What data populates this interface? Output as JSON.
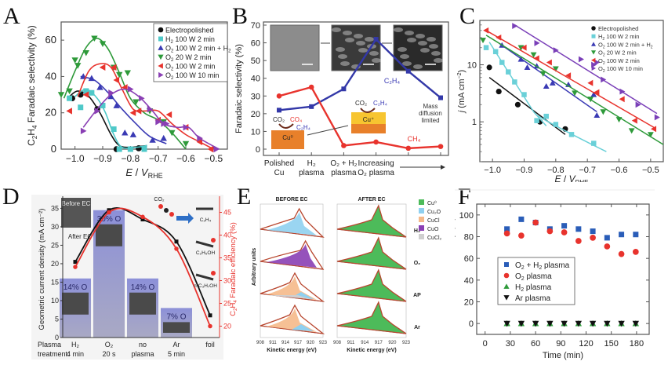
{
  "panel_labels": {
    "A": "A",
    "B": "B",
    "C": "C",
    "D": "D",
    "E": "E",
    "F": "F"
  },
  "chart_data": [
    {
      "id": "A",
      "type": "scatter",
      "title": "",
      "xlabel": "E / V_RHE",
      "ylabel": "C2H4 Faradaic selectivity (%)",
      "xlim": [
        -1.05,
        -0.45
      ],
      "ylim": [
        0,
        70
      ],
      "xticks": [
        -1.0,
        -0.9,
        -0.8,
        -0.7,
        -0.6,
        -0.5
      ],
      "xtick_labels": [
        "−1.0",
        "−0.9",
        "−0.8",
        "−0.7",
        "−0.6",
        "−0.5"
      ],
      "yticks": [
        0,
        20,
        40,
        60
      ],
      "legend_position": "top-right",
      "series": [
        {
          "name": "Electropolished",
          "color": "#111111",
          "marker": "circle",
          "x": [
            -1.01,
            -0.98,
            -0.92,
            -0.85,
            -0.77
          ],
          "y": [
            28,
            30,
            22,
            0,
            0.5
          ],
          "fit": [
            [
              -1.02,
              29
            ],
            [
              -0.99,
              32
            ],
            [
              -0.95,
              29
            ],
            [
              -0.91,
              20
            ],
            [
              -0.87,
              8
            ],
            [
              -0.84,
              2
            ],
            [
              -0.8,
              1
            ],
            [
              -0.74,
              2
            ]
          ]
        },
        {
          "name": "H2 100 W 2 min",
          "color": "#4fc9c9",
          "marker": "square",
          "x": [
            -1.02,
            -0.98,
            -0.96,
            -0.94,
            -0.9,
            -0.86,
            -0.84,
            -0.8,
            -0.75
          ],
          "y": [
            28,
            23,
            32,
            31,
            24,
            11,
            0,
            0,
            0
          ],
          "fit": [
            [
              -1.0,
              29
            ],
            [
              -0.96,
              33
            ],
            [
              -0.92,
              28
            ],
            [
              -0.89,
              20
            ],
            [
              -0.86,
              8
            ],
            [
              -0.83,
              1
            ],
            [
              -0.78,
              1
            ],
            [
              -0.74,
              2
            ]
          ]
        },
        {
          "name": "O2 100 W 2 min + H2",
          "color": "#3a3ab4",
          "marker": "triangle-up",
          "x": [
            -0.97,
            -0.94,
            -0.91,
            -0.87,
            -0.85,
            -0.82,
            -0.79,
            -0.72,
            -0.68
          ],
          "y": [
            40,
            39,
            34,
            29,
            24,
            9,
            8,
            5,
            6
          ],
          "fit": [
            [
              -0.98,
              40
            ],
            [
              -0.93,
              38
            ],
            [
              -0.88,
              31
            ],
            [
              -0.83,
              22
            ],
            [
              -0.78,
              14
            ],
            [
              -0.73,
              7
            ],
            [
              -0.67,
              3
            ]
          ]
        },
        {
          "name": "O2 20 W 2 min",
          "color": "#2e9a3a",
          "marker": "triangle-down",
          "x": [
            -1.05,
            -1.02,
            -1.0,
            -0.99,
            -0.96,
            -0.93,
            -0.9,
            -0.86,
            -0.84,
            -0.81,
            -0.78,
            -0.73,
            -0.68,
            -0.65,
            -0.6
          ],
          "y": [
            30,
            32,
            49,
            46,
            53,
            61,
            58,
            45,
            41,
            42,
            26,
            21,
            15,
            9,
            3
          ],
          "fit": [
            [
              -1.04,
              28
            ],
            [
              -1.0,
              43
            ],
            [
              -0.96,
              56
            ],
            [
              -0.92,
              61
            ],
            [
              -0.88,
              55
            ],
            [
              -0.84,
              42
            ],
            [
              -0.8,
              28
            ],
            [
              -0.75,
              20
            ],
            [
              -0.7,
              16
            ],
            [
              -0.65,
              9
            ],
            [
              -0.6,
              0
            ]
          ]
        },
        {
          "name": "O2 100 W 2 min",
          "color": "#e8332d",
          "marker": "triangle-left",
          "x": [
            -1.02,
            -0.96,
            -0.9,
            -0.86,
            -0.85,
            -0.82,
            -0.79,
            -0.77,
            -0.7,
            -0.66,
            -0.6,
            -0.55,
            -0.51
          ],
          "y": [
            21,
            30,
            45,
            45,
            38,
            34,
            20,
            21,
            16,
            19,
            12,
            4,
            0
          ],
          "fit": [
            [
              -0.99,
              29
            ],
            [
              -0.95,
              43
            ],
            [
              -0.91,
              47
            ],
            [
              -0.87,
              45
            ],
            [
              -0.83,
              33
            ],
            [
              -0.79,
              22
            ],
            [
              -0.75,
              21
            ],
            [
              -0.7,
              21
            ],
            [
              -0.65,
              14
            ],
            [
              -0.6,
              8
            ],
            [
              -0.55,
              4
            ],
            [
              -0.5,
              0
            ]
          ]
        },
        {
          "name": "O2 100 W 10 min",
          "color": "#8a3fb4",
          "marker": "triangle-right",
          "x": [
            -0.97,
            -0.92,
            -0.87,
            -0.8,
            -0.76,
            -0.73,
            -0.7,
            -0.68,
            -0.67,
            -0.6,
            -0.55,
            -0.49
          ],
          "y": [
            10,
            21,
            31,
            33,
            28,
            22,
            15,
            14,
            14,
            12,
            6,
            0
          ],
          "fit": [
            [
              -0.97,
              12
            ],
            [
              -0.92,
              22
            ],
            [
              -0.87,
              30
            ],
            [
              -0.82,
              33
            ],
            [
              -0.77,
              29
            ],
            [
              -0.72,
              21
            ],
            [
              -0.68,
              14
            ],
            [
              -0.63,
              12
            ],
            [
              -0.59,
              12
            ],
            [
              -0.55,
              6
            ],
            [
              -0.48,
              0
            ]
          ]
        }
      ]
    },
    {
      "id": "B",
      "type": "line",
      "title": "",
      "xlabel": "",
      "ylabel": "Faradaic selectivity (%)",
      "ylim": [
        0,
        70
      ],
      "yticks": [
        0,
        10,
        20,
        30,
        40,
        50,
        60,
        70
      ],
      "categories": [
        "Polished\nCu",
        "H2\nplasma",
        "O2 + H2\nplasma",
        "Increasing\nO2 plasma",
        "",
        ""
      ],
      "category_labels": [
        {
          "line1": "Polished",
          "line2": "Cu"
        },
        {
          "line1": "H₂",
          "line2": "plasma"
        },
        {
          "line1": "O₂ + H₂",
          "line2": "plasma"
        },
        {
          "line1": "Increasing",
          "line2": "O₂ plasma"
        }
      ],
      "series": [
        {
          "name": "C2H4",
          "label": "C₂H₄",
          "color": "#3338a8",
          "marker": "square",
          "values": [
            22,
            24,
            34,
            62,
            44,
            29
          ]
        },
        {
          "name": "CH4",
          "label": "CH₄",
          "color": "#e8332d",
          "marker": "circle",
          "values": [
            30,
            35,
            2,
            4,
            0.5,
            1.5
          ]
        }
      ],
      "annotations": {
        "mass_diffusion": [
          "Mass",
          "diffusion",
          "limited"
        ],
        "cu0": "Cu⁰",
        "cuplus": "Cu⁺",
        "co2": "CO₂",
        "co4": "CO₄",
        "c2h4": "C₂H₄"
      }
    },
    {
      "id": "C",
      "type": "scatter",
      "yscale": "log",
      "title": "",
      "xlabel": "E / V_RHE",
      "ylabel": "j (mA cm⁻²)",
      "xlim": [
        -1.04,
        -0.46
      ],
      "ylim": [
        0.2,
        60
      ],
      "xticks": [
        -1.0,
        -0.9,
        -0.8,
        -0.7,
        -0.6,
        -0.5
      ],
      "xtick_labels": [
        "−1.0",
        "−0.9",
        "−0.8",
        "−0.7",
        "−0.6",
        "−0.5"
      ],
      "yticks": [
        1,
        10
      ],
      "legend_position": "top-right",
      "series": [
        {
          "name": "Electropolished",
          "color": "#111111",
          "marker": "circle",
          "x": [
            -1.01,
            -0.98,
            -0.92,
            -0.85,
            -0.77
          ],
          "y": [
            9,
            3.4,
            2,
            1,
            0.75
          ],
          "fit": [
            [
              -1.01,
              6
            ],
            [
              -0.77,
              0.6
            ]
          ]
        },
        {
          "name": "H2 100 W 2 min",
          "color": "#6ad0d8",
          "marker": "square",
          "x": [
            -1.02,
            -0.99,
            -0.97,
            -0.95,
            -0.93,
            -0.9,
            -0.86,
            -0.83,
            -0.8,
            -0.75,
            -0.68
          ],
          "y": [
            20,
            17,
            11,
            7.5,
            5,
            3,
            1.05,
            1.25,
            0.9,
            0.6,
            0.42
          ],
          "fit": [
            [
              -1.01,
              25
            ],
            [
              -0.87,
              1.5
            ],
            [
              -0.83,
              0.85
            ]
          ],
          "fit2": [
            [
              -0.86,
              1.3
            ],
            [
              -0.8,
              0.85
            ],
            [
              -0.72,
              0.5
            ],
            [
              -0.64,
              0.3
            ]
          ]
        },
        {
          "name": "O2 100 W 2 min + H2",
          "color": "#3a3ab4",
          "marker": "triangle-up",
          "x": [
            -0.97,
            -0.91,
            -0.89,
            -0.86,
            -0.83,
            -0.81,
            -0.76,
            -0.68,
            -0.67
          ],
          "y": [
            22,
            12.5,
            9,
            9.5,
            4.2,
            4.8,
            4.5,
            3,
            1.3
          ],
          "fit": [
            [
              -0.98,
              24
            ],
            [
              -0.67,
              1.5
            ]
          ]
        },
        {
          "name": "O2 20 W 2 min",
          "color": "#2e9a3a",
          "marker": "triangle-down",
          "x": [
            -1.03,
            -0.91,
            -0.87,
            -0.84,
            -0.8,
            -0.74,
            -0.69,
            -0.65,
            -0.6,
            -0.56,
            -0.5
          ],
          "y": [
            27,
            20,
            15,
            7,
            8.5,
            3.2,
            2.5,
            1.5,
            1.1,
            0.7,
            0.6
          ],
          "fit": [
            [
              -1.02,
              33
            ],
            [
              -0.46,
              0.4
            ]
          ]
        },
        {
          "name": "O2 100 W 2 min",
          "color": "#e8332d",
          "marker": "triangle-left",
          "x": [
            -1.02,
            -0.98,
            -0.9,
            -0.86,
            -0.82,
            -0.76,
            -0.69,
            -0.67,
            -0.59,
            -0.55,
            -0.49
          ],
          "y": [
            40,
            30,
            20,
            13,
            11,
            6.5,
            4.8,
            3.3,
            2.5,
            1.05,
            0.75
          ],
          "fit": [
            [
              -1.02,
              40
            ],
            [
              -0.49,
              0.8
            ]
          ]
        },
        {
          "name": "O2 100 W 10 min",
          "color": "#7a3fb8",
          "marker": "triangle-right",
          "x": [
            -0.93,
            -0.86,
            -0.8,
            -0.72,
            -0.68,
            -0.67,
            -0.65,
            -0.59,
            -0.54,
            -0.48
          ],
          "y": [
            48,
            24,
            18,
            12.5,
            10,
            11,
            5.5,
            3.4,
            2,
            1.2
          ],
          "fit": [
            [
              -0.93,
              50
            ],
            [
              -0.48,
              1.4
            ]
          ]
        }
      ]
    },
    {
      "id": "D",
      "type": "bar",
      "title": "",
      "xlabel": "",
      "ylabel": "Geometric current density (mA cm⁻²)",
      "y2label": "C2H4 Faradaic efficiency (%)",
      "ylim": [
        0,
        37
      ],
      "y2lim": [
        17.5,
        47.5
      ],
      "yticks": [
        0,
        5,
        10,
        15,
        20,
        25,
        30,
        35
      ],
      "y2ticks": [
        20,
        25,
        30,
        35,
        40,
        45
      ],
      "row_label": [
        "Plasma",
        "treatment:"
      ],
      "categories": [
        {
          "line1": "H₂",
          "line2": "4 min"
        },
        {
          "line1": "O₂",
          "line2": "20 s"
        },
        {
          "line1": "no",
          "line2": "plasma"
        },
        {
          "line1": "Ar",
          "line2": "5 min"
        },
        {
          "line1": "foil",
          "line2": ""
        }
      ],
      "bars": [
        {
          "value": 16,
          "label": "14% O"
        },
        {
          "value": 34.5,
          "label": "30% O"
        },
        {
          "value": 16,
          "label": "14% O"
        },
        {
          "value": 8,
          "label": "7% O"
        },
        {
          "value": null,
          "label": ""
        }
      ],
      "series": [
        {
          "name": "Current density",
          "color": "#111111",
          "axis": "left",
          "values": [
            20.5,
            34.5,
            32,
            26,
            6
          ]
        },
        {
          "name": "C2H4 FE",
          "color": "#e8332d",
          "axis": "right",
          "values": [
            33,
            45,
            44,
            37,
            20
          ]
        }
      ],
      "annotations": {
        "before_ec": "Before EC",
        "after_ec": "After EC",
        "co2": "CO₂",
        "products": [
          "C₂H₄",
          "C₂H₅OH",
          "n-C₃H₇OH"
        ]
      }
    },
    {
      "id": "E",
      "type": "area",
      "title": "",
      "xlabel": "Kinetic energy (eV)",
      "ylabel": "Arbitrary units",
      "xticks": [
        908,
        911,
        914,
        917,
        920,
        923
      ],
      "columns": [
        "BEFORE EC",
        "AFTER EC"
      ],
      "rows": [
        "H₂",
        "O₂",
        "AP",
        "Ar"
      ],
      "legend": [
        {
          "name": "Cu⁰",
          "color": "#4dbb5a"
        },
        {
          "name": "Cu₂O",
          "color": "#8fd0f0"
        },
        {
          "name": "CuCl",
          "color": "#f5b98a"
        },
        {
          "name": "CuO",
          "color": "#8a3fb4"
        },
        {
          "name": "CuCl₂",
          "color": "#cfcfcf"
        }
      ],
      "envelope_color": "#b8462e"
    },
    {
      "id": "F",
      "type": "scatter",
      "title": "",
      "xlabel": "Time (min)",
      "ylabel": "CO Faradaic Efficiency (%)",
      "xlim": [
        -10,
        195
      ],
      "ylim": [
        -10,
        110
      ],
      "xticks": [
        0,
        30,
        60,
        90,
        120,
        150,
        180
      ],
      "yticks": [
        0,
        20,
        40,
        60,
        80,
        100
      ],
      "legend_position": "center-left",
      "x": [
        26,
        43,
        60,
        77,
        94,
        111,
        128,
        145,
        162,
        179
      ],
      "series": [
        {
          "name": "O₂ + H₂ plasma",
          "color": "#2a5db8",
          "marker": "square",
          "values": [
            87,
            96,
            93,
            87,
            90,
            87,
            85,
            79,
            82,
            82
          ]
        },
        {
          "name": "O₂ plasma",
          "color": "#e8332d",
          "marker": "circle",
          "values": [
            83,
            81,
            93,
            85,
            84,
            76,
            79,
            71,
            64,
            66
          ]
        },
        {
          "name": "H₂ plasma",
          "color": "#2e9a3a",
          "marker": "triangle-up",
          "values": [
            0,
            0,
            0,
            0,
            0,
            0,
            0,
            0,
            0,
            0
          ]
        },
        {
          "name": "Ar plasma",
          "color": "#111111",
          "marker": "triangle-down",
          "values": [
            0,
            0,
            0,
            0,
            0,
            0,
            0,
            0,
            0,
            0
          ]
        }
      ]
    }
  ]
}
